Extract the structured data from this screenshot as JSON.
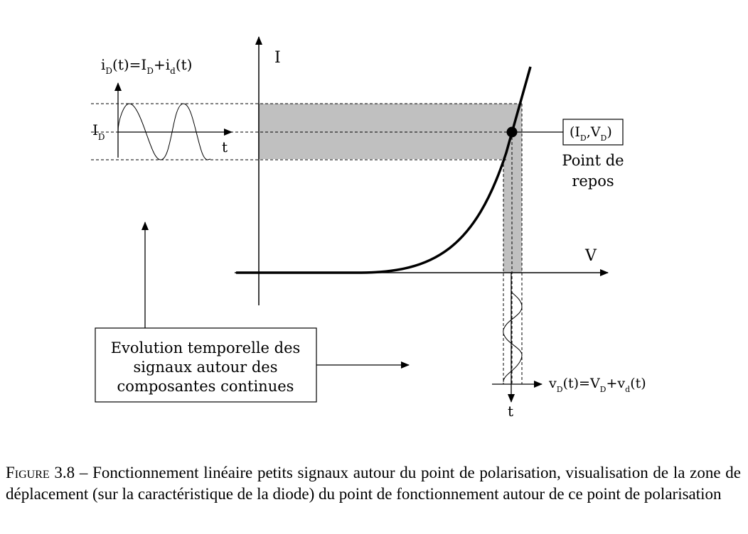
{
  "labels": {
    "current_axis": "I",
    "voltage_axis": "V",
    "time_left": "t",
    "time_bottom": "t",
    "id_sym": "i",
    "id_sub": "D",
    "id_t": "(t)=I",
    "id_sub2": "D",
    "id_plus": "+i",
    "id_sub3": "d",
    "id_t2": "(t)",
    "ID_main": "I",
    "ID_sub": "D",
    "quiescent_open": "(I",
    "quiescent_sub1": "D",
    "quiescent_mid": ",V",
    "quiescent_sub2": "D",
    "quiescent_close": ")",
    "quiescent_line1": "Point de",
    "quiescent_line2": "repos",
    "vd_sym": "v",
    "vd_sub": "D",
    "vd_t": "(t)=V",
    "vd_sub2": "D",
    "vd_plus": "+v",
    "vd_sub3": "d",
    "vd_t2": "(t)",
    "note_line1": "Evolution temporelle des",
    "note_line2": "signaux autour des",
    "note_line3": "composantes continues"
  },
  "caption": {
    "label": "Figure",
    "number": "3.8",
    "text": "– Fonctionnement linéaire petits signaux autour du point de polarisation, visualisation de la zone de déplacement (sur la caractéristique de la diode) du point de fonctionnement autour de ce point de polarisation"
  },
  "colors": {
    "band": "#c0c0c0",
    "ink": "#000000"
  }
}
